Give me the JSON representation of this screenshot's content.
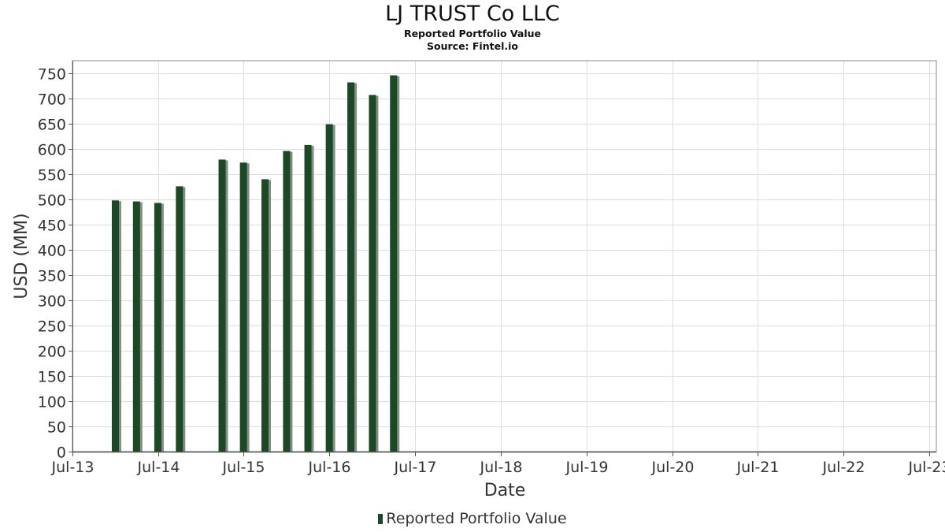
{
  "chart_data": {
    "type": "bar",
    "title": "LJ TRUST Co LLC",
    "subtitle": "Reported Portfolio Value",
    "source": "Source: Fintel.io",
    "xlabel": "Date",
    "ylabel": "USD (MM)",
    "ylim": [
      0,
      775
    ],
    "yticks": [
      0,
      50,
      100,
      150,
      200,
      250,
      300,
      350,
      400,
      450,
      500,
      550,
      600,
      650,
      700,
      750
    ],
    "xlim": [
      "2013-07-01",
      "2023-08-01"
    ],
    "xticks": [
      {
        "date": "2013-07-01",
        "label": "Jul-13"
      },
      {
        "date": "2014-07-01",
        "label": "Jul-14"
      },
      {
        "date": "2015-07-01",
        "label": "Jul-15"
      },
      {
        "date": "2016-07-01",
        "label": "Jul-16"
      },
      {
        "date": "2017-07-01",
        "label": "Jul-17"
      },
      {
        "date": "2018-07-01",
        "label": "Jul-18"
      },
      {
        "date": "2019-07-01",
        "label": "Jul-19"
      },
      {
        "date": "2020-07-01",
        "label": "Jul-20"
      },
      {
        "date": "2021-07-01",
        "label": "Jul-21"
      },
      {
        "date": "2022-07-01",
        "label": "Jul-22"
      },
      {
        "date": "2023-07-01",
        "label": "Jul-23"
      }
    ],
    "grid": true,
    "legend_position": "bottom-center",
    "bar_color": "#1a4a24",
    "series": [
      {
        "name": "Reported Portfolio Value",
        "x": [
          "2013-12-31",
          "2014-03-31",
          "2014-06-30",
          "2014-09-30",
          "2015-03-31",
          "2015-06-30",
          "2015-09-30",
          "2015-12-31",
          "2016-03-31",
          "2016-06-30",
          "2016-09-30",
          "2016-12-31",
          "2017-03-31"
        ],
        "values": [
          498,
          496,
          493,
          526,
          579,
          573,
          540,
          596,
          608,
          649,
          732,
          707,
          746
        ]
      }
    ]
  }
}
